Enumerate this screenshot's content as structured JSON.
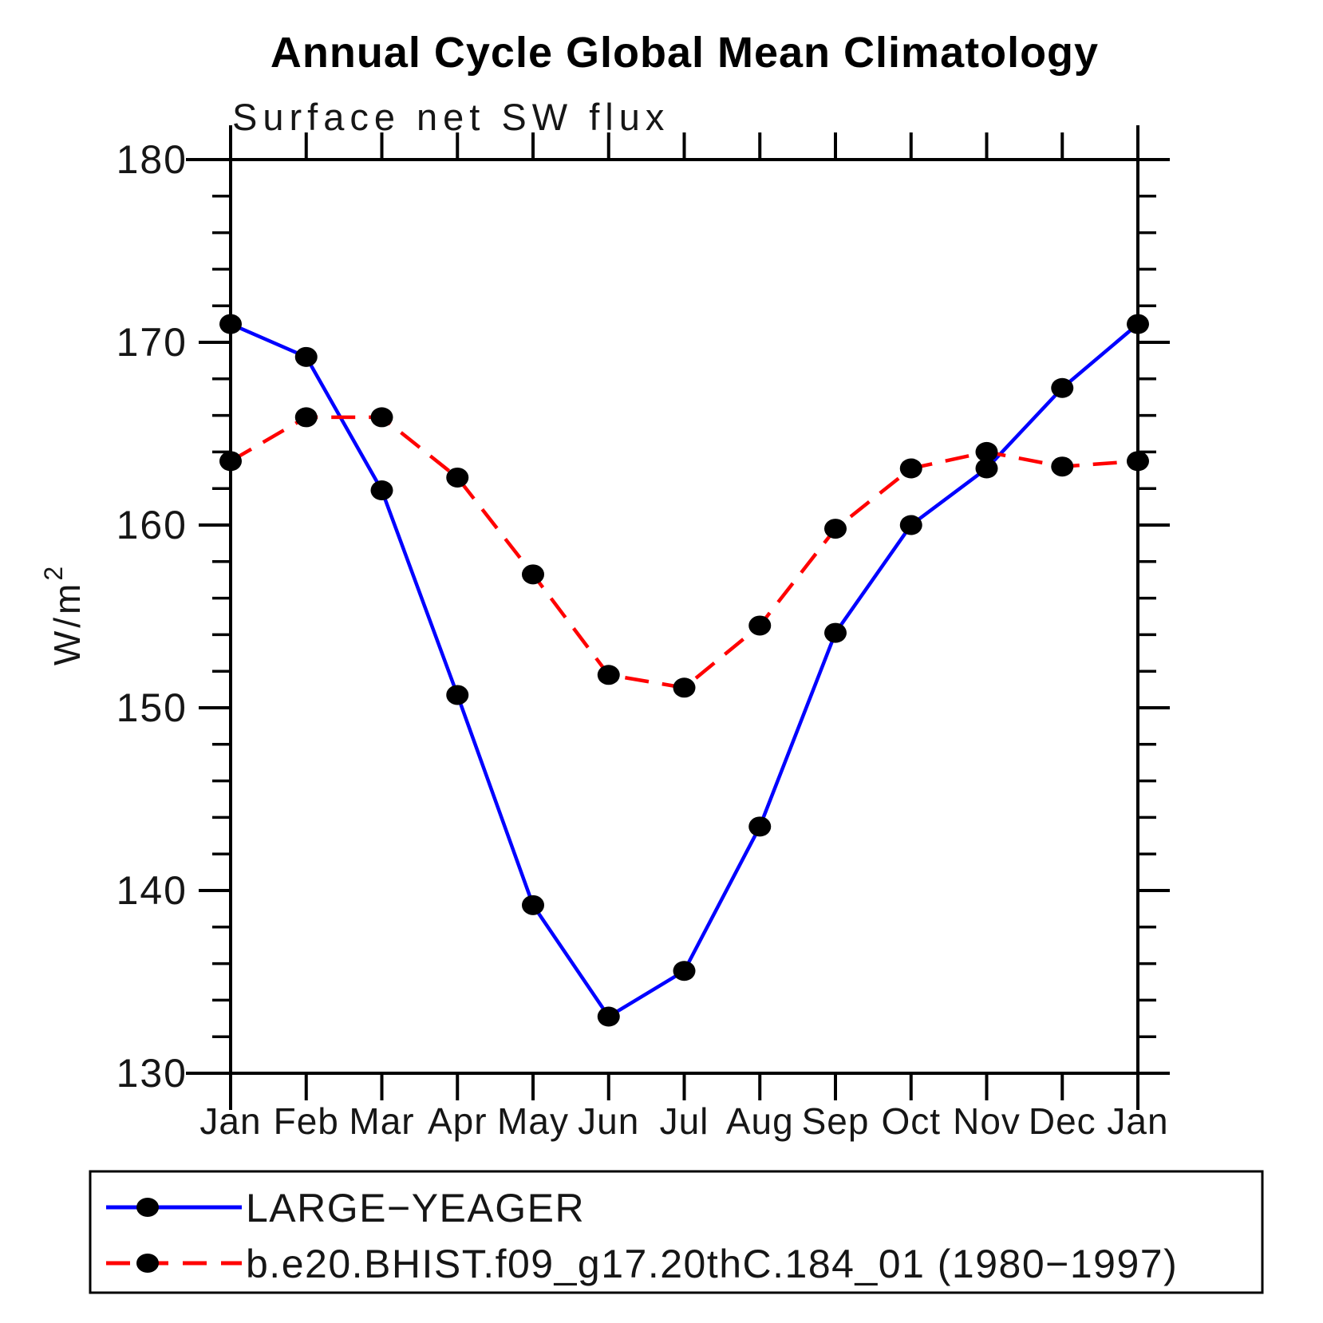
{
  "title": "Annual Cycle Global Mean Climatology",
  "subtitle": "Surface net SW flux",
  "y_axis": {
    "label_base": "W/m",
    "label_exponent": "2"
  },
  "chart_data": {
    "type": "line",
    "title": "Annual Cycle Global Mean Climatology",
    "subtitle": "Surface net SW flux",
    "ylabel": "W/m²",
    "xlabel": "",
    "categories": [
      "Jan",
      "Feb",
      "Mar",
      "Apr",
      "May",
      "Jun",
      "Jul",
      "Aug",
      "Sep",
      "Oct",
      "Nov",
      "Dec",
      "Jan"
    ],
    "series": [
      {
        "name": "LARGE−YEAGER",
        "color": "#0000ff",
        "line_style": "solid",
        "marker": "filled-black-circle",
        "values": [
          171.0,
          169.2,
          161.9,
          150.7,
          139.2,
          133.1,
          135.6,
          143.5,
          154.1,
          160.0,
          163.1,
          167.5,
          171.0
        ]
      },
      {
        "name": "b.e20.BHIST.f09_g17.20thC.184_01 (1980−1997)",
        "color": "#ff0000",
        "line_style": "dashed",
        "marker": "filled-black-circle",
        "values": [
          163.5,
          165.9,
          165.9,
          162.6,
          157.3,
          151.8,
          151.1,
          154.5,
          159.8,
          163.1,
          164.0,
          163.2,
          163.5
        ]
      }
    ],
    "ylim": [
      130,
      180
    ],
    "yticks_major": [
      130,
      140,
      150,
      160,
      170,
      180
    ],
    "ytick_minor_step": 2,
    "grid": false,
    "legend_position": "bottom-box",
    "marker_color": "#000000",
    "axis_color": "#000000"
  }
}
